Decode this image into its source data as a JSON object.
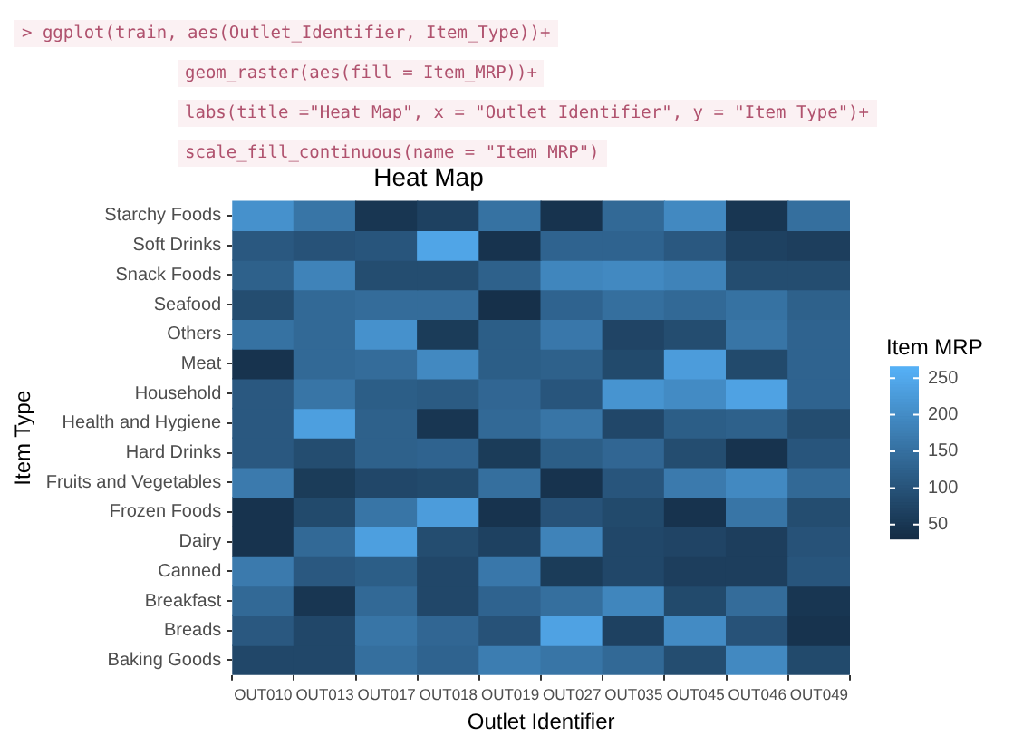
{
  "chart_data": {
    "type": "heatmap",
    "title": "Heat Map",
    "xlabel": "Outlet Identifier",
    "ylabel": "Item Type",
    "clabel": "Item MRP",
    "annotations": [
      "> ggplot(train, aes(Outlet_Identifier, Item_Type))+",
      "geom_raster(aes(fill = Item_MRP))+",
      "labs(title =\"Heat Map\", x = \"Outlet Identifier\", y = \"Item Type\")+",
      "scale_fill_continuous(name = \"Item MRP\")"
    ],
    "categories": [
      "OUT010",
      "OUT013",
      "OUT017",
      "OUT018",
      "OUT019",
      "OUT027",
      "OUT035",
      "OUT045",
      "OUT046",
      "OUT049"
    ],
    "y_categories": [
      "Starchy Foods",
      "Soft Drinks",
      "Snack Foods",
      "Seafood",
      "Others",
      "Meat",
      "Household",
      "Health and Hygiene",
      "Hard Drinks",
      "Fruits and Vegetables",
      "Frozen Foods",
      "Dairy",
      "Canned",
      "Breakfast",
      "Breads",
      "Baking Goods"
    ],
    "cells": [
      [
        210,
        160,
        50,
        70,
        155,
        45,
        140,
        195,
        50,
        150
      ],
      [
        110,
        100,
        105,
        245,
        45,
        130,
        130,
        110,
        70,
        65
      ],
      [
        125,
        185,
        90,
        90,
        125,
        190,
        195,
        185,
        90,
        90
      ],
      [
        90,
        140,
        145,
        145,
        40,
        130,
        150,
        140,
        155,
        125
      ],
      [
        155,
        140,
        210,
        60,
        120,
        165,
        75,
        90,
        160,
        130
      ],
      [
        45,
        140,
        145,
        195,
        120,
        125,
        85,
        230,
        85,
        130
      ],
      [
        110,
        160,
        120,
        115,
        135,
        105,
        215,
        200,
        240,
        130
      ],
      [
        110,
        235,
        125,
        50,
        140,
        160,
        80,
        120,
        125,
        90
      ],
      [
        110,
        90,
        125,
        130,
        60,
        120,
        135,
        90,
        45,
        105
      ],
      [
        170,
        60,
        80,
        85,
        150,
        45,
        105,
        170,
        195,
        140
      ],
      [
        45,
        85,
        160,
        230,
        45,
        100,
        85,
        45,
        160,
        90
      ],
      [
        45,
        140,
        235,
        90,
        70,
        185,
        80,
        75,
        65,
        100
      ],
      [
        170,
        110,
        120,
        80,
        165,
        60,
        80,
        65,
        65,
        105
      ],
      [
        140,
        50,
        140,
        80,
        130,
        150,
        190,
        85,
        145,
        50
      ],
      [
        110,
        80,
        160,
        135,
        100,
        240,
        70,
        200,
        100,
        45
      ],
      [
        80,
        80,
        150,
        130,
        175,
        160,
        140,
        90,
        195,
        85
      ]
    ],
    "clim": [
      31,
      266
    ],
    "cticks": [
      50,
      100,
      150,
      200,
      250
    ]
  }
}
